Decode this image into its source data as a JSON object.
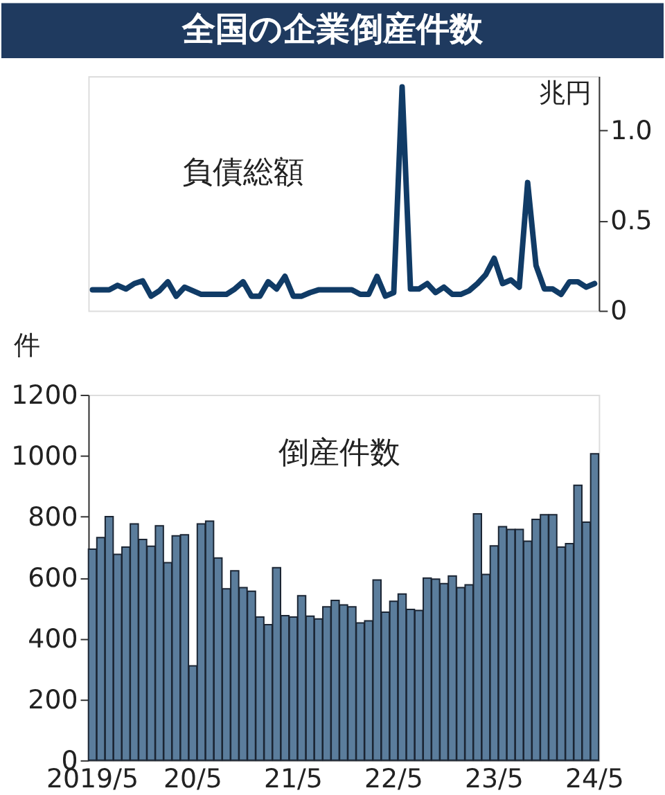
{
  "chart_data": [
    {
      "type": "line",
      "title": "全国の企業倒産件数",
      "ylabel": "兆円",
      "annotations": [
        "負債総額"
      ],
      "categories": [
        null,
        null,
        null,
        null,
        null,
        null,
        null,
        null,
        null,
        null,
        null,
        null,
        null,
        null,
        null,
        null,
        null,
        null,
        null,
        null,
        null,
        null,
        null,
        null,
        null,
        null,
        null,
        null,
        null,
        null,
        null,
        null,
        null,
        null,
        null,
        null,
        null,
        null,
        null,
        null,
        null,
        null,
        null,
        null,
        null,
        null,
        null,
        null,
        null,
        null,
        null,
        null,
        null,
        null,
        null,
        null,
        null,
        null,
        null,
        null,
        null
      ],
      "series": [
        {
          "color": "#103b66",
          "values": [
            0.115,
            0.115,
            0.115,
            0.14,
            0.12,
            0.15,
            0.165,
            0.08,
            0.11,
            0.16,
            0.08,
            0.13,
            0.11,
            0.09,
            0.09,
            0.09,
            0.09,
            0.12,
            0.16,
            0.08,
            0.08,
            0.16,
            0.12,
            0.19,
            0.08,
            0.08,
            0.1,
            0.115,
            0.115,
            0.115,
            0.115,
            0.115,
            0.09,
            0.09,
            0.19,
            0.08,
            0.1,
            1.24,
            0.12,
            0.12,
            0.15,
            0.1,
            0.13,
            0.09,
            0.09,
            0.11,
            0.15,
            0.2,
            0.29,
            0.15,
            0.17,
            0.13,
            0.71,
            0.25,
            0.12,
            0.12,
            0.09,
            0.16,
            0.16,
            0.13,
            0.15
          ]
        }
      ],
      "ylim": [
        0,
        1.3
      ],
      "yticks": [
        0,
        {
          "value": 0.5,
          "label": "0.5"
        },
        {
          "value": 1,
          "label": "1.0"
        }
      ],
      "marker": "none",
      "line_style": "solid",
      "grid": false
    },
    {
      "type": "bar",
      "ylabel": "件",
      "annotations": [
        "倒産件数"
      ],
      "categories": [
        "2019/5",
        null,
        null,
        null,
        null,
        null,
        null,
        null,
        null,
        null,
        null,
        null,
        "20/5",
        null,
        null,
        null,
        null,
        null,
        null,
        null,
        null,
        null,
        null,
        null,
        "21/5",
        null,
        null,
        null,
        null,
        null,
        null,
        null,
        null,
        null,
        null,
        null,
        "22/5",
        null,
        null,
        null,
        null,
        null,
        null,
        null,
        null,
        null,
        null,
        null,
        "23/5",
        null,
        null,
        null,
        null,
        null,
        null,
        null,
        null,
        null,
        null,
        null,
        "24/5"
      ],
      "series": [
        {
          "color": "#5b7d9c",
          "values": [
            693,
            731,
            800,
            676,
            700,
            776,
            725,
            703,
            770,
            649,
            737,
            740,
            310,
            776,
            785,
            664,
            563,
            622,
            567,
            555,
            470,
            445,
            632,
            475,
            470,
            540,
            473,
            464,
            504,
            525,
            510,
            504,
            451,
            458,
            592,
            486,
            522,
            546,
            495,
            492,
            598,
            595,
            580,
            605,
            567,
            576,
            809,
            610,
            704,
            767,
            758,
            758,
            719,
            791,
            806,
            806,
            700,
            711,
            903,
            782,
            1006
          ]
        }
      ],
      "ylim": [
        0,
        1200
      ],
      "yticks": [
        0,
        200,
        400,
        600,
        800,
        1000,
        1200
      ],
      "grid": false
    }
  ]
}
